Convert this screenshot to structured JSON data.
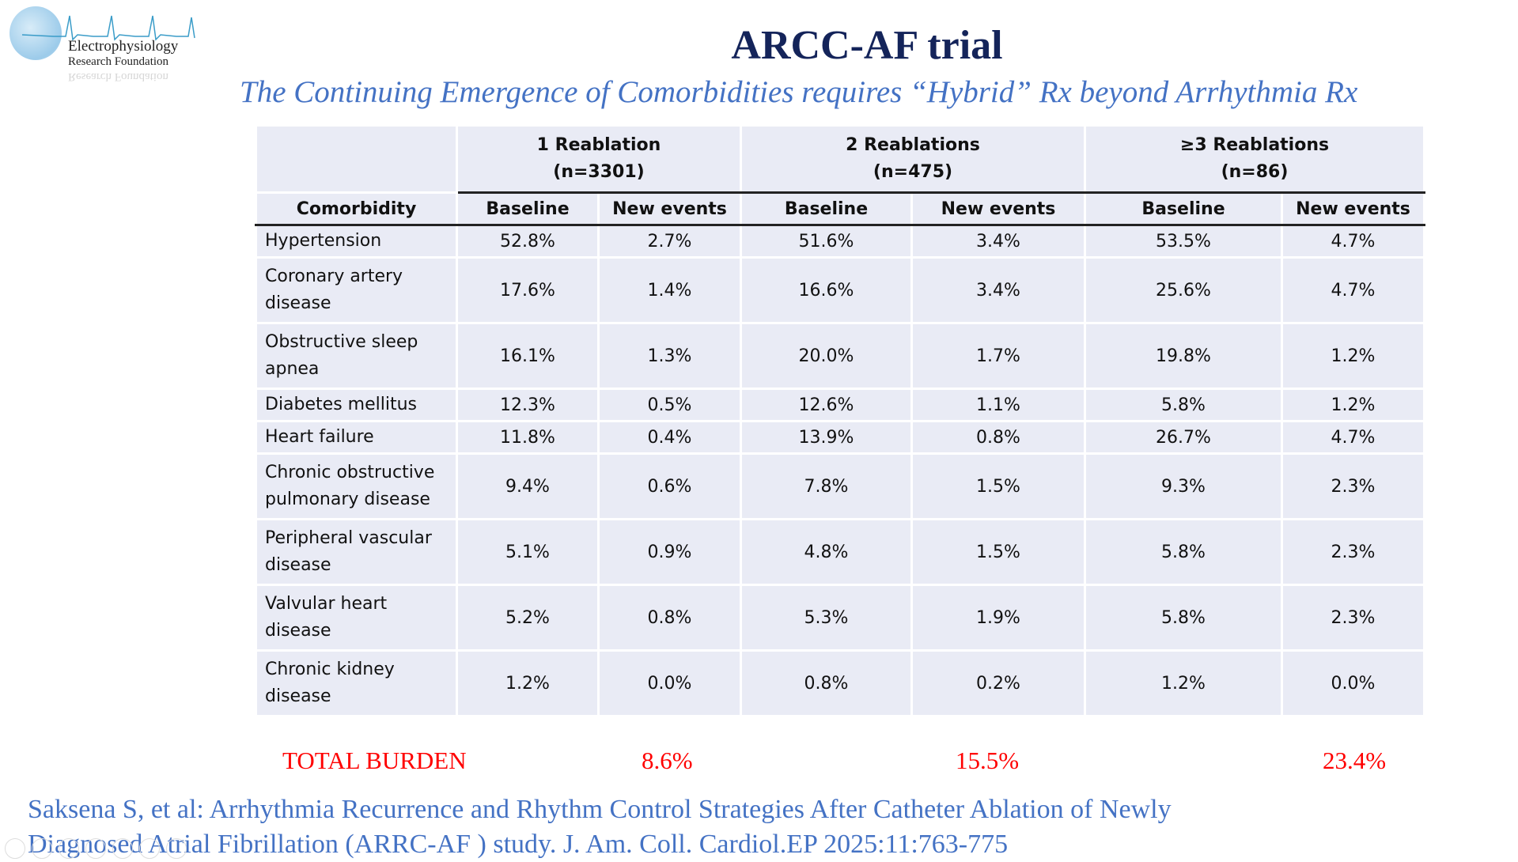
{
  "logo": {
    "line1": "Electrophysiology",
    "line2": "Research Foundation"
  },
  "title": "ARCC-AF trial",
  "subtitle": "The Continuing Emergence of Comorbidities requires “Hybrid” Rx beyond Arrhythmia Rx",
  "table": {
    "groups": [
      {
        "label": "1 Reablation",
        "n": "(n=3301)"
      },
      {
        "label": "2 Reablations",
        "n": "(n=475)"
      },
      {
        "label": "≥3 Reablations",
        "n": "(n=86)"
      }
    ],
    "col_comorbidity": "Comorbidity",
    "col_baseline": "Baseline",
    "col_new": "New events",
    "rows": [
      {
        "name": "Hypertension",
        "v": [
          "52.8%",
          "2.7%",
          "51.6%",
          "3.4%",
          "53.5%",
          "4.7%"
        ]
      },
      {
        "name": "Coronary artery disease",
        "v": [
          "17.6%",
          "1.4%",
          "16.6%",
          "3.4%",
          "25.6%",
          "4.7%"
        ]
      },
      {
        "name": "Obstructive sleep apnea",
        "v": [
          "16.1%",
          "1.3%",
          "20.0%",
          "1.7%",
          "19.8%",
          "1.2%"
        ]
      },
      {
        "name": "Diabetes mellitus",
        "v": [
          "12.3%",
          "0.5%",
          "12.6%",
          "1.1%",
          "5.8%",
          "1.2%"
        ]
      },
      {
        "name": "Heart failure",
        "v": [
          "11.8%",
          "0.4%",
          "13.9%",
          "0.8%",
          "26.7%",
          "4.7%"
        ]
      },
      {
        "name": "Chronic obstructive pulmonary disease",
        "v": [
          "9.4%",
          "0.6%",
          "7.8%",
          "1.5%",
          "9.3%",
          "2.3%"
        ]
      },
      {
        "name": "Peripheral vascular disease",
        "v": [
          "5.1%",
          "0.9%",
          "4.8%",
          "1.5%",
          "5.8%",
          "2.3%"
        ]
      },
      {
        "name": "Valvular heart disease",
        "v": [
          "5.2%",
          "0.8%",
          "5.3%",
          "1.9%",
          "5.8%",
          "2.3%"
        ]
      },
      {
        "name": "Chronic kidney disease",
        "v": [
          "1.2%",
          "0.0%",
          "0.8%",
          "0.2%",
          "1.2%",
          "0.0%"
        ]
      }
    ]
  },
  "totals": {
    "label": "TOTAL BURDEN",
    "values": [
      "8.6%",
      "15.5%",
      "23.4%"
    ]
  },
  "citation": {
    "line1": "Saksena S, et al: Arrhythmia Recurrence and Rhythm Control Strategies After Catheter Ablation of Newly",
    "line2": "Diagnosed Atrial Fibrillation (ARRC-AF ) study. J. Am. Coll. Cardiol.EP 2025:11:763-775"
  }
}
